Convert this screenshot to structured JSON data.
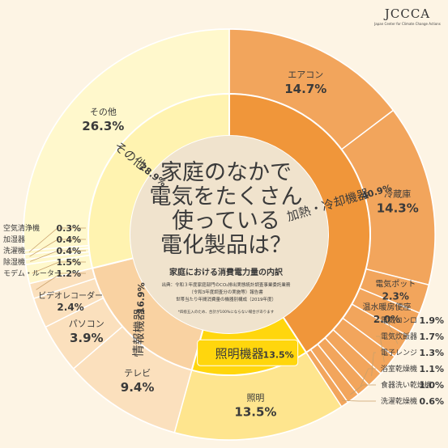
{
  "logo": {
    "name": "JCCCA",
    "subtitle": "Japan Center for Climate Change Actions"
  },
  "colors": {
    "background": "#fdf4e4",
    "heating_cooling_inner": "#f0963a",
    "heating_cooling_outer": "#f2a55c",
    "other_inner": "#fff3b0",
    "other_outer": "#fff8cc",
    "info_inner": "#f9d2a2",
    "info_outer": "#fbe0bd",
    "lighting_inner": "#ffd60d",
    "lighting_outer": "#fee58e",
    "center": "#f0e3cd",
    "leader": "#c9a06a"
  },
  "center": {
    "title_lines": [
      "家庭のなかで",
      "電気をたくさん",
      "使っている",
      "電化製品は？"
    ],
    "subtitle": "家庭における消費電力量の内訳",
    "source_lines": [
      "出典：令和３年度家庭部門のCO₂排出実態統計調査事業委託業務",
      "（令和3年度調査分の実施等）報告書",
      "世帯当たり年間消費量の機器別構成（2019年度）"
    ],
    "note": "*四捨五入のため、合計が100%にならない場合があります"
  },
  "chart_data": {
    "type": "pie",
    "subtype": "two-level donut",
    "start": "12 o'clock",
    "direction": "clockwise",
    "categories": [
      {
        "name": "加熱・冷却機器",
        "value_label": "40.9%",
        "value": 40.9,
        "items": [
          {
            "name": "エアコン",
            "value": 14.7,
            "label": "14.7%"
          },
          {
            "name": "冷蔵庫",
            "value": 14.3,
            "label": "14.3%"
          },
          {
            "name": "電気ポット",
            "value": 2.3,
            "label": "2.3%"
          },
          {
            "name": "温水暖房便座",
            "value": 2.0,
            "label": "2.0%"
          },
          {
            "name": "電気コンロ",
            "value": 1.9,
            "label": "1.9%"
          },
          {
            "name": "電気炊飯器",
            "value": 1.7,
            "label": "1.7%"
          },
          {
            "name": "電子レンジ",
            "value": 1.3,
            "label": "1.3%"
          },
          {
            "name": "浴室乾燥機",
            "value": 1.1,
            "label": "1.1%"
          },
          {
            "name": "食器洗い乾燥機",
            "value": 1.0,
            "label": "1.0%"
          },
          {
            "name": "洗濯乾燥機",
            "value": 0.6,
            "label": "0.6%"
          }
        ]
      },
      {
        "name": "照明機器",
        "value_label": "13.5%",
        "value": 13.5,
        "items": [
          {
            "name": "照明",
            "value": 13.5,
            "label": "13.5%"
          }
        ]
      },
      {
        "name": "情報機器",
        "value_label": "16.9%",
        "value": 16.9,
        "items": [
          {
            "name": "テレビ",
            "value": 9.4,
            "label": "9.4%"
          },
          {
            "name": "パソコン",
            "value": 3.9,
            "label": "3.9%"
          },
          {
            "name": "ビデオレコーダー",
            "value": 2.4,
            "label": "2.4%"
          },
          {
            "name": "モデム・ルーター",
            "value": 1.2,
            "label": "1.2%"
          }
        ]
      },
      {
        "name": "その他",
        "value_label": "28.9%",
        "value": 28.9,
        "items": [
          {
            "name": "除湿機",
            "value": 1.5,
            "label": "1.5%"
          },
          {
            "name": "洗濯機",
            "value": 0.4,
            "label": "0.4%"
          },
          {
            "name": "加湿器",
            "value": 0.4,
            "label": "0.4%"
          },
          {
            "name": "空気清浄機",
            "value": 0.3,
            "label": "0.3%"
          },
          {
            "name": "その他",
            "value": 26.3,
            "label": "26.3%"
          }
        ]
      }
    ]
  }
}
